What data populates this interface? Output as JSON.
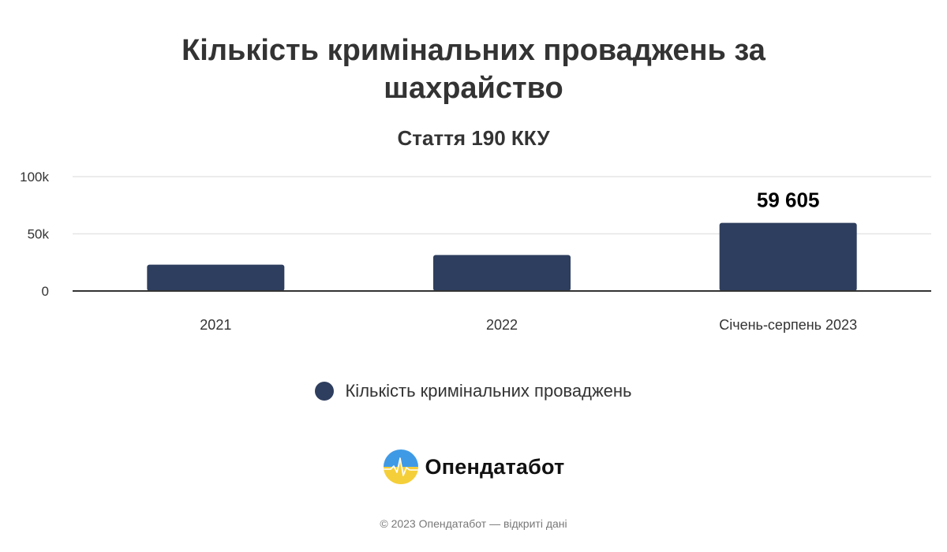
{
  "chart": {
    "title": "Кількість кримінальних проваджень за шахрайство",
    "subtitle": "Стаття 190 ККУ"
  },
  "legend": {
    "label": "Кількість кримінальних проваджень",
    "color": "#2e3e5e"
  },
  "brand": {
    "name": "Опендатабот",
    "logo_icon": "opendatabot-logo-icon"
  },
  "footer": {
    "copyright": "© 2023 Опендатабот — відкриті дані"
  },
  "colors": {
    "bar": "#2e3e5e",
    "grid": "#e6e6e6",
    "axis": "#333333",
    "text": "#333333"
  },
  "chart_data": {
    "type": "bar",
    "title": "Кількість кримінальних проваджень за шахрайство",
    "subtitle": "Стаття 190 ККУ",
    "categories": [
      "2021",
      "2022",
      "Січень-серпень 2023"
    ],
    "series": [
      {
        "name": "Кількість кримінальних проваджень",
        "values": [
          23000,
          31500,
          59605
        ],
        "data_labels": [
          "",
          "",
          "59 605"
        ]
      }
    ],
    "ylim": [
      0,
      100000
    ],
    "yticks": [
      0,
      50000,
      100000
    ],
    "ytick_labels": [
      "0",
      "50k",
      "100k"
    ],
    "grid": true,
    "legend_position": "bottom"
  }
}
